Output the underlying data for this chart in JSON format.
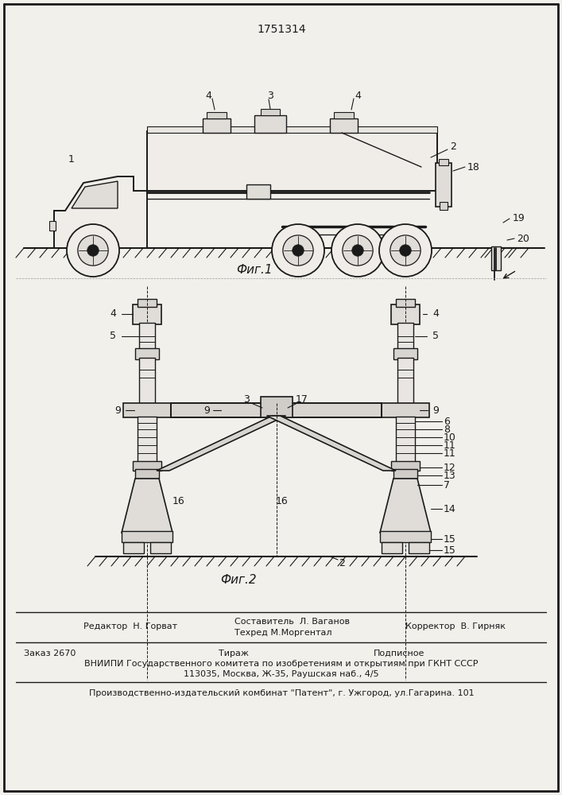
{
  "patent_number": "1751314",
  "fig1_label": "Фиг.1",
  "fig2_label": "Фиг.2",
  "bg_color": "#f2f0eb",
  "line_color": "#1a1a1a",
  "editor_line": "Редактор  Н. Горват",
  "composer_line1": "Составитель  Л. Ваганов",
  "composer_line2": "Техред М.Моргентал",
  "corrector_line": "Корректор  В. Гирняк",
  "order_line": "Заказ 2670",
  "tirage_line": "Тираж",
  "podpisnoe_line": "Подписное",
  "vniiipi_line": "ВНИИПИ Государственного комитета по изобретениям и открытиям при ГКНТ СССР",
  "address_line": "113035, Москва, Ж-35, Раушская наб., 4/5",
  "factory_line": "Производственно-издательский комбинат \"Патент\", г. Ужгород, ул.Гагарина. 101"
}
